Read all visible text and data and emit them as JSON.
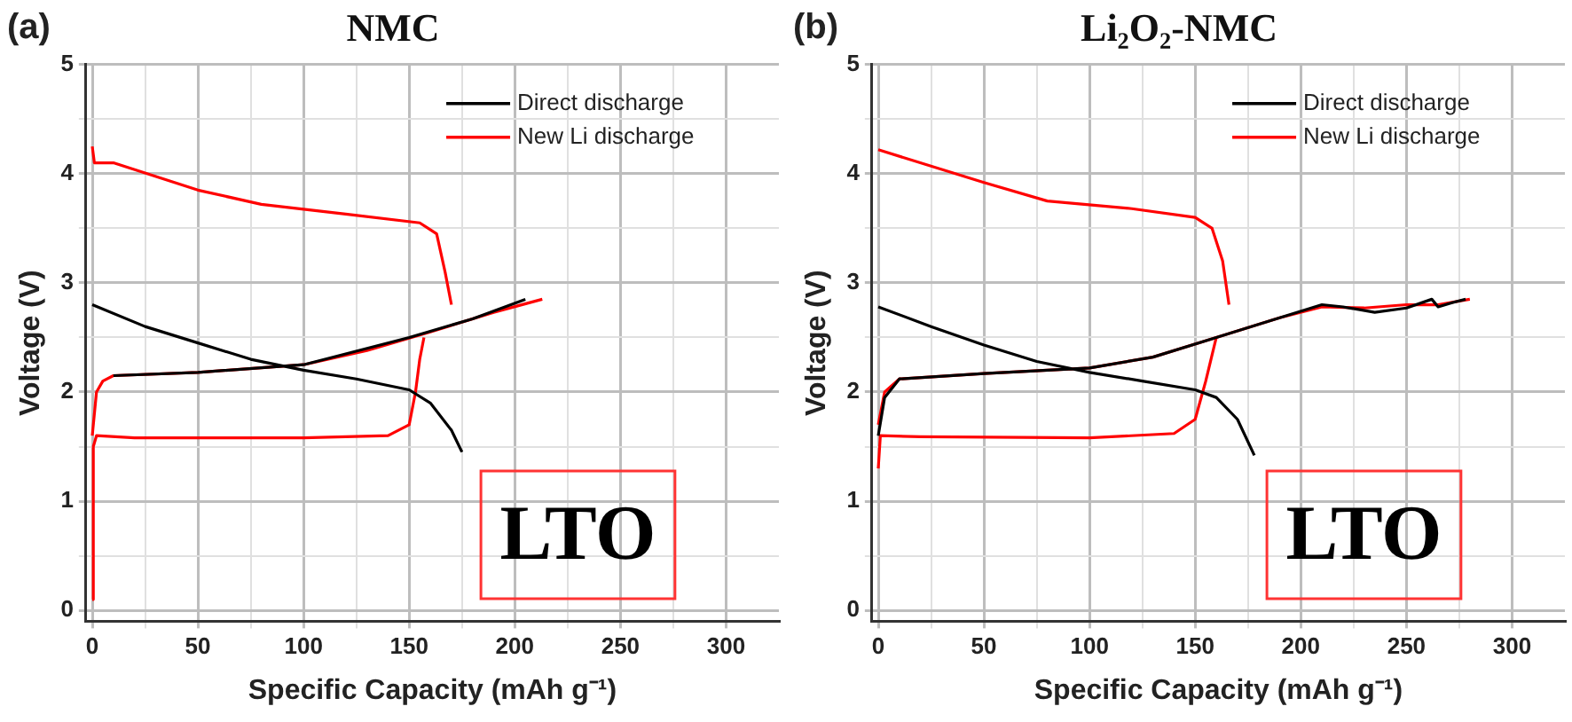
{
  "chart_data": [
    {
      "type": "line",
      "title": "NMC",
      "xlabel": "Specific Capacity (mAh g⁻¹)",
      "ylabel": "Voltage (V)",
      "annotations": [
        "(a)",
        "LTO"
      ],
      "xlim": [
        -3,
        325
      ],
      "ylim": [
        -0.1,
        5
      ],
      "xticks": [
        0,
        {
          "value": 25,
          "label": null
        },
        50,
        {
          "value": 75,
          "label": null
        },
        100,
        {
          "value": 125,
          "label": null
        },
        150,
        {
          "value": 175,
          "label": null
        },
        200,
        {
          "value": 225,
          "label": null
        },
        250,
        {
          "value": 275,
          "label": null
        },
        300
      ],
      "yticks": [
        0,
        {
          "value": 0.5,
          "label": null
        },
        1,
        {
          "value": 1.5,
          "label": null
        },
        2,
        {
          "value": 2.5,
          "label": null
        },
        3,
        {
          "value": 3.5,
          "label": null
        },
        4,
        {
          "value": 4.5,
          "label": null
        },
        5
      ],
      "grid": true,
      "legend": "top right",
      "line_style": "solid",
      "marker": "none",
      "series": [
        {
          "name": "Direct discharge",
          "color": "#000000",
          "x": [
            0,
            25,
            50,
            75,
            100,
            125,
            150,
            160,
            170,
            175,
            null,
            10,
            50,
            100,
            150,
            180,
            205
          ],
          "values": [
            2.8,
            2.6,
            2.45,
            2.3,
            2.2,
            2.12,
            2.02,
            1.9,
            1.65,
            1.45,
            null,
            2.15,
            2.18,
            2.25,
            2.5,
            2.67,
            2.85
          ]
        },
        {
          "name": "New Li discharge",
          "color": "#ff0000",
          "x": [
            0,
            0.5,
            2,
            20,
            100,
            140,
            150,
            153,
            155,
            157,
            null,
            0,
            2,
            5,
            10,
            50,
            100,
            130,
            160,
            190,
            213,
            null,
            0,
            1,
            10,
            50,
            80,
            120,
            155,
            163,
            167,
            170
          ],
          "values": [
            0.1,
            1.5,
            1.6,
            1.58,
            1.58,
            1.6,
            1.7,
            2,
            2.3,
            2.5,
            null,
            1.6,
            2,
            2.1,
            2.15,
            2.18,
            2.25,
            2.38,
            2.55,
            2.73,
            2.85,
            null,
            4.25,
            4.1,
            4.1,
            3.85,
            3.72,
            3.63,
            3.55,
            3.45,
            3.1,
            2.8
          ]
        }
      ]
    },
    {
      "type": "line",
      "title": "Li₂O₂-NMC",
      "xlabel": "Specific Capacity (mAh g⁻¹)",
      "ylabel": "Voltage (V)",
      "annotations": [
        "(b)",
        "LTO"
      ],
      "xlim": [
        -3,
        325
      ],
      "ylim": [
        -0.1,
        5
      ],
      "xticks": [
        0,
        {
          "value": 25,
          "label": null
        },
        50,
        {
          "value": 75,
          "label": null
        },
        100,
        {
          "value": 125,
          "label": null
        },
        150,
        {
          "value": 175,
          "label": null
        },
        200,
        {
          "value": 225,
          "label": null
        },
        250,
        {
          "value": 275,
          "label": null
        },
        300
      ],
      "yticks": [
        0,
        {
          "value": 0.5,
          "label": null
        },
        1,
        {
          "value": 1.5,
          "label": null
        },
        2,
        {
          "value": 2.5,
          "label": null
        },
        3,
        {
          "value": 3.5,
          "label": null
        },
        4,
        {
          "value": 4.5,
          "label": null
        },
        5
      ],
      "grid": true,
      "legend": "top right",
      "line_style": "solid",
      "marker": "none",
      "series": [
        {
          "name": "Direct discharge",
          "color": "#000000",
          "x": [
            0,
            25,
            50,
            75,
            100,
            125,
            150,
            160,
            170,
            178,
            null,
            0,
            3,
            10,
            50,
            100,
            130,
            160,
            190,
            210,
            220,
            235,
            250,
            262,
            265,
            272,
            278
          ],
          "values": [
            2.78,
            2.6,
            2.43,
            2.28,
            2.18,
            2.1,
            2.02,
            1.95,
            1.75,
            1.42,
            null,
            1.6,
            1.95,
            2.12,
            2.17,
            2.22,
            2.32,
            2.5,
            2.68,
            2.8,
            2.78,
            2.73,
            2.77,
            2.85,
            2.78,
            2.82,
            2.85
          ]
        },
        {
          "name": "New Li discharge",
          "color": "#ff0000",
          "x": [
            0,
            1,
            20,
            100,
            140,
            150,
            155,
            160,
            null,
            0,
            3,
            10,
            50,
            100,
            130,
            160,
            190,
            210,
            230,
            250,
            265,
            280,
            null,
            0,
            50,
            80,
            120,
            150,
            158,
            163,
            166
          ],
          "values": [
            1.3,
            1.6,
            1.59,
            1.58,
            1.62,
            1.75,
            2.1,
            2.5,
            null,
            1.7,
            2,
            2.12,
            2.17,
            2.22,
            2.32,
            2.5,
            2.68,
            2.78,
            2.77,
            2.8,
            2.8,
            2.85,
            null,
            4.22,
            3.92,
            3.75,
            3.68,
            3.6,
            3.5,
            3.2,
            2.8
          ]
        }
      ]
    }
  ]
}
